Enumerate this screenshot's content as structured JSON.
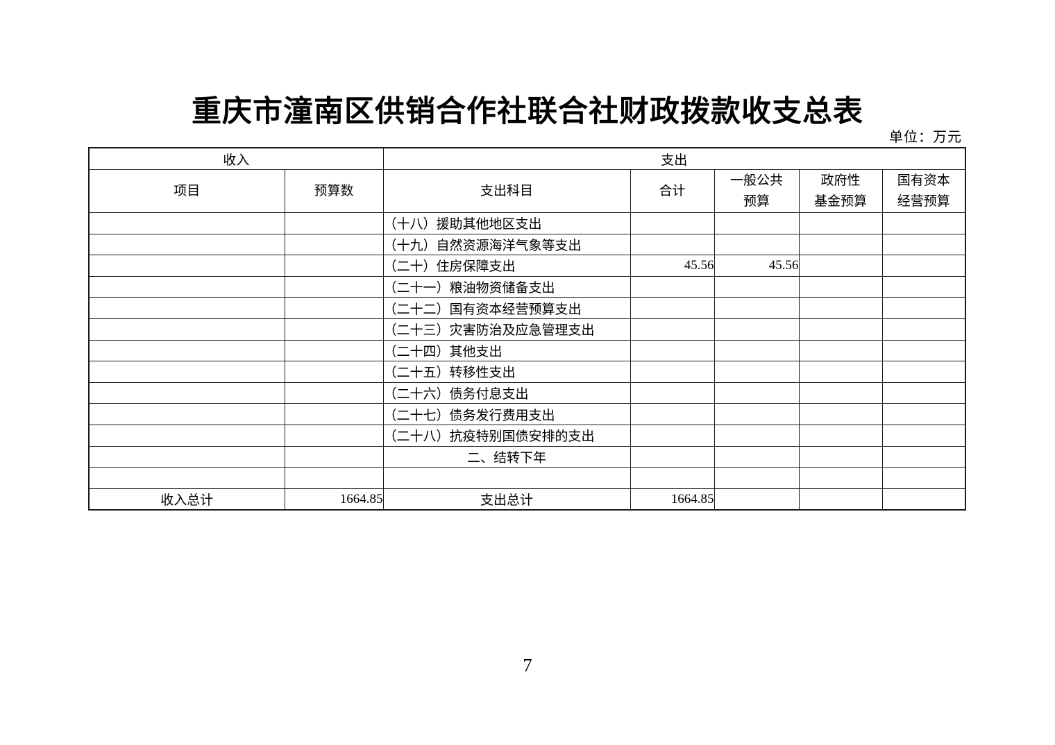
{
  "page": {
    "title": "重庆市潼南区供销合作社联合社财政拨款收支总表",
    "unit_note": "单位：万元",
    "page_number": "7"
  },
  "table": {
    "group_headers": {
      "income": "收入",
      "expenditure": "支出"
    },
    "columns": [
      {
        "key": "item",
        "label": "项目"
      },
      {
        "key": "budget",
        "label": "预算数"
      },
      {
        "key": "subject",
        "label": "支出科目"
      },
      {
        "key": "total",
        "label": "合计"
      },
      {
        "key": "general_public",
        "label": "一般公共\n预算"
      },
      {
        "key": "gov_fund",
        "label": "政府性\n基金预算"
      },
      {
        "key": "state_capital",
        "label": "国有资本\n经营预算"
      }
    ],
    "rows": [
      {
        "item": "",
        "budget": "",
        "subject": "（十八）援助其他地区支出",
        "subject_align": "left",
        "total": "",
        "general_public": "",
        "gov_fund": "",
        "state_capital": ""
      },
      {
        "item": "",
        "budget": "",
        "subject": "（十九）自然资源海洋气象等支出",
        "subject_align": "left",
        "total": "",
        "general_public": "",
        "gov_fund": "",
        "state_capital": ""
      },
      {
        "item": "",
        "budget": "",
        "subject": "（二十）住房保障支出",
        "subject_align": "left",
        "total": "45.56",
        "general_public": "45.56",
        "gov_fund": "",
        "state_capital": ""
      },
      {
        "item": "",
        "budget": "",
        "subject": "（二十一）粮油物资储备支出",
        "subject_align": "left",
        "total": "",
        "general_public": "",
        "gov_fund": "",
        "state_capital": ""
      },
      {
        "item": "",
        "budget": "",
        "subject": "（二十二）国有资本经营预算支出",
        "subject_align": "left",
        "total": "",
        "general_public": "",
        "gov_fund": "",
        "state_capital": ""
      },
      {
        "item": "",
        "budget": "",
        "subject": "（二十三）灾害防治及应急管理支出",
        "subject_align": "left",
        "total": "",
        "general_public": "",
        "gov_fund": "",
        "state_capital": ""
      },
      {
        "item": "",
        "budget": "",
        "subject": "（二十四）其他支出",
        "subject_align": "left",
        "total": "",
        "general_public": "",
        "gov_fund": "",
        "state_capital": ""
      },
      {
        "item": "",
        "budget": "",
        "subject": "（二十五）转移性支出",
        "subject_align": "left",
        "total": "",
        "general_public": "",
        "gov_fund": "",
        "state_capital": ""
      },
      {
        "item": "",
        "budget": "",
        "subject": "（二十六）债务付息支出",
        "subject_align": "left",
        "total": "",
        "general_public": "",
        "gov_fund": "",
        "state_capital": ""
      },
      {
        "item": "",
        "budget": "",
        "subject": "（二十七）债务发行费用支出",
        "subject_align": "left",
        "total": "",
        "general_public": "",
        "gov_fund": "",
        "state_capital": ""
      },
      {
        "item": "",
        "budget": "",
        "subject": "（二十八）抗疫特别国债安排的支出",
        "subject_align": "left",
        "total": "",
        "general_public": "",
        "gov_fund": "",
        "state_capital": ""
      },
      {
        "item": "",
        "budget": "",
        "subject": "二、结转下年",
        "subject_align": "center",
        "total": "",
        "general_public": "",
        "gov_fund": "",
        "state_capital": ""
      },
      {
        "item": "",
        "budget": "",
        "subject": "",
        "subject_align": "left",
        "total": "",
        "general_public": "",
        "gov_fund": "",
        "state_capital": ""
      },
      {
        "item": "收入总计",
        "budget": "1664.85",
        "subject": "支出总计",
        "subject_align": "center",
        "total": "1664.85",
        "general_public": "",
        "gov_fund": "",
        "state_capital": ""
      }
    ]
  }
}
